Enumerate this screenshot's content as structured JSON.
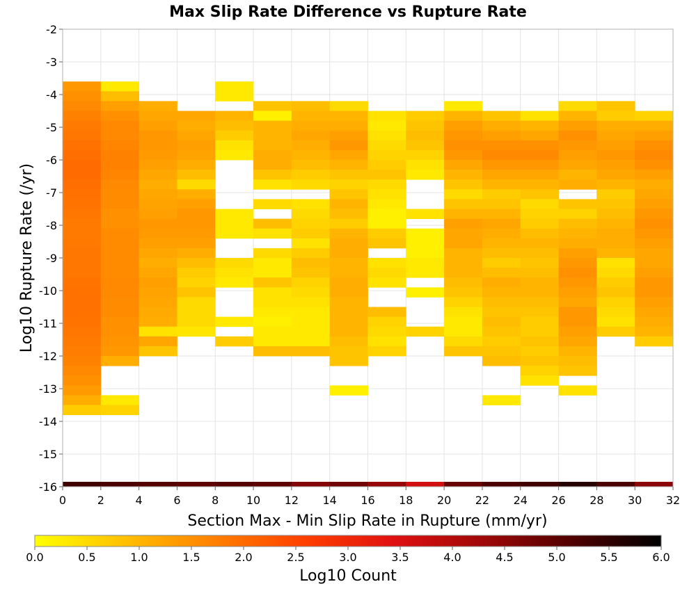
{
  "chart_data": {
    "type": "heatmap",
    "title": "Max Slip Rate Difference vs Rupture Rate",
    "xlabel": "Section Max - Min Slip Rate in Rupture (mm/yr)",
    "ylabel": "Log10 Rupture Rate (/yr)",
    "xlim": [
      0,
      32
    ],
    "ylim": [
      -16,
      -2
    ],
    "x_ticks": [
      "0",
      "2",
      "4",
      "6",
      "8",
      "10",
      "12",
      "14",
      "16",
      "18",
      "20",
      "22",
      "24",
      "26",
      "28",
      "30",
      "32"
    ],
    "y_ticks": [
      "-2",
      "-3",
      "-4",
      "-5",
      "-6",
      "-7",
      "-8",
      "-9",
      "-10",
      "-11",
      "-12",
      "-13",
      "-14",
      "-15",
      "-16"
    ],
    "x_bin_width": 2,
    "y_bin_height": 0.3,
    "grid": true,
    "colorbar": {
      "label": "Log10 Count",
      "range": [
        0,
        6
      ],
      "ticks": [
        "0.0",
        "0.5",
        "1.0",
        "1.5",
        "2.0",
        "2.5",
        "3.0",
        "3.5",
        "4.0",
        "4.5",
        "5.0",
        "5.5",
        "6.0"
      ],
      "colormap": [
        "#ffff00",
        "#ffc000",
        "#ff8000",
        "#ff4000",
        "#e01010",
        "#a00808",
        "#500000",
        "#000000"
      ],
      "placement": "bottom"
    },
    "columns": [
      {
        "x": 0,
        "y_top": -3.6,
        "values": [
          1.4,
          1.5,
          1.6,
          1.7,
          1.8,
          1.85,
          1.9,
          1.95,
          2.0,
          2.0,
          1.95,
          1.9,
          1.88,
          1.85,
          1.8,
          1.8,
          1.82,
          1.85,
          1.85,
          1.85,
          1.88,
          1.9,
          1.92,
          1.9,
          1.88,
          1.85,
          1.8,
          1.75,
          1.7,
          1.6,
          1.5,
          1.35,
          1.1,
          0.7
        ]
      },
      {
        "x": 2,
        "y_top": -3.6,
        "values": [
          0.3,
          0.9,
          1.3,
          1.5,
          1.6,
          1.6,
          1.65,
          1.7,
          1.7,
          1.65,
          1.6,
          1.55,
          1.55,
          1.5,
          1.5,
          1.55,
          1.55,
          1.55,
          1.55,
          1.55,
          1.6,
          1.6,
          1.55,
          1.55,
          1.5,
          1.5,
          1.45,
          1.4,
          1.1,
          null,
          null,
          null,
          0.3,
          0.6
        ]
      },
      {
        "x": 4,
        "y_top": -4.2,
        "values": [
          1.1,
          1.2,
          1.3,
          1.4,
          1.4,
          1.35,
          1.3,
          1.2,
          1.1,
          1.2,
          1.25,
          1.3,
          1.4,
          1.35,
          1.3,
          1.2,
          1.1,
          1.2,
          1.3,
          1.25,
          1.2,
          1.15,
          1.1,
          0.4,
          1.2,
          0.8
        ]
      },
      {
        "x": 6,
        "y_top": -4.5,
        "values": [
          1.2,
          1.1,
          1.2,
          1.3,
          1.25,
          1.1,
          0.9,
          0.5,
          1.1,
          1.3,
          1.4,
          1.4,
          1.35,
          1.3,
          1.1,
          0.9,
          0.7,
          0.6,
          0.8,
          0.5,
          0.5,
          0.5,
          0.35
        ]
      },
      {
        "x": 8,
        "y_top": -3.6,
        "values": [
          0.3,
          0.3,
          null,
          1.0,
          0.9,
          0.7,
          0.4,
          0.3,
          null,
          null,
          null,
          null,
          null,
          0.3,
          0.3,
          0.3,
          null,
          null,
          0.5,
          0.4,
          0.3,
          null,
          null,
          null,
          0.3,
          null,
          0.7
        ]
      },
      {
        "x": 10,
        "y_top": -4.2,
        "values": [
          0.8,
          0.2,
          1.0,
          1.0,
          1.0,
          1.1,
          1.1,
          0.8,
          0.4,
          null,
          0.5,
          null,
          0.9,
          0.4,
          null,
          0.5,
          0.3,
          0.3,
          0.8,
          0.4,
          0.4,
          0.3,
          0.2,
          0.3,
          0.3,
          0.9
        ]
      },
      {
        "x": 12,
        "y_top": -4.2,
        "values": [
          0.9,
          1.0,
          1.1,
          1.2,
          1.1,
          1.0,
          0.9,
          0.7,
          0.5,
          null,
          0.4,
          0.5,
          0.6,
          0.7,
          0.4,
          0.7,
          0.9,
          0.8,
          0.6,
          0.5,
          0.4,
          0.3,
          0.3,
          0.3,
          0.3,
          0.9
        ]
      },
      {
        "x": 14,
        "y_top": -4.2,
        "values": [
          0.5,
          1.0,
          1.1,
          1.3,
          1.4,
          1.2,
          1.0,
          0.8,
          0.6,
          0.8,
          1.0,
          0.9,
          0.7,
          1.0,
          1.1,
          1.1,
          1.0,
          1.0,
          1.1,
          1.1,
          1.0,
          1.0,
          1.0,
          1.0,
          0.9,
          0.8,
          0.8,
          null,
          null,
          0.2
        ]
      },
      {
        "x": 16,
        "y_top": -4.5,
        "values": [
          0.4,
          0.3,
          0.4,
          0.5,
          0.6,
          0.7,
          0.8,
          0.5,
          0.4,
          0.3,
          0.2,
          0.2,
          0.7,
          0.8,
          null,
          0.4,
          0.5,
          0.4,
          null,
          null,
          0.9,
          0.6,
          0.5,
          0.4,
          0.6
        ]
      },
      {
        "x": 18,
        "y_top": -4.5,
        "values": [
          0.7,
          0.8,
          0.9,
          0.8,
          0.6,
          0.4,
          0.3,
          null,
          null,
          null,
          0.4,
          null,
          0.2,
          0.2,
          0.2,
          0.3,
          0.3,
          null,
          0.2,
          null,
          null,
          null,
          0.6
        ]
      },
      {
        "x": 20,
        "y_top": -4.2,
        "values": [
          0.3,
          1.0,
          1.3,
          1.4,
          1.5,
          1.4,
          1.2,
          1.0,
          0.8,
          0.5,
          0.8,
          1.0,
          1.3,
          1.2,
          1.2,
          1.0,
          1.0,
          1.0,
          0.9,
          0.8,
          0.6,
          0.4,
          0.3,
          0.3,
          0.5,
          0.8
        ]
      },
      {
        "x": 22,
        "y_top": -4.5,
        "values": [
          0.8,
          1.1,
          1.3,
          1.5,
          1.6,
          1.4,
          1.2,
          1.0,
          0.7,
          0.8,
          1.0,
          1.2,
          1.1,
          1.0,
          0.9,
          0.7,
          0.9,
          1.1,
          1.0,
          0.9,
          0.8,
          0.9,
          0.8,
          0.7,
          0.8,
          0.9,
          null,
          null,
          null,
          0.3
        ]
      },
      {
        "x": 24,
        "y_top": -4.5,
        "values": [
          0.4,
          1.0,
          1.2,
          1.5,
          1.6,
          1.4,
          1.2,
          1.0,
          0.8,
          0.5,
          0.6,
          0.7,
          0.9,
          1.0,
          0.9,
          0.8,
          0.9,
          1.0,
          1.0,
          0.9,
          0.8,
          0.7,
          0.7,
          0.8,
          0.7,
          0.8,
          0.6,
          0.4
        ]
      },
      {
        "x": 26,
        "y_top": -4.2,
        "values": [
          0.5,
          1.0,
          1.3,
          1.5,
          1.4,
          1.3,
          1.2,
          1.0,
          1.1,
          null,
          0.8,
          0.6,
          0.9,
          1.0,
          1.1,
          1.3,
          1.4,
          1.5,
          1.4,
          1.3,
          1.2,
          1.4,
          1.4,
          1.3,
          1.2,
          1.0,
          0.9,
          0.8,
          null,
          0.4
        ]
      },
      {
        "x": 28,
        "y_top": -4.2,
        "values": [
          0.8,
          0.7,
          1.1,
          1.2,
          1.3,
          1.4,
          1.3,
          1.2,
          1.0,
          0.7,
          0.8,
          0.9,
          1.0,
          1.1,
          1.1,
          1.0,
          0.4,
          0.5,
          0.7,
          0.8,
          0.6,
          0.5,
          0.4,
          0.7
        ]
      },
      {
        "x": 30,
        "y_top": -4.5,
        "values": [
          0.6,
          1.1,
          1.3,
          1.5,
          1.6,
          1.5,
          1.3,
          1.1,
          1.2,
          1.3,
          1.4,
          1.5,
          1.4,
          1.3,
          1.2,
          1.2,
          1.3,
          1.4,
          1.4,
          1.3,
          1.2,
          1.1,
          1.0,
          0.7
        ]
      }
    ],
    "floor_band": {
      "y_bottom": -16,
      "y_top": -15.85,
      "values": [
        5.3,
        5.2,
        5.1,
        5.0,
        5.1,
        5.0,
        4.6,
        4.8,
        4.4,
        3.6,
        4.9,
        5.2,
        5.3,
        5.6,
        5.2,
        4.5
      ]
    }
  }
}
